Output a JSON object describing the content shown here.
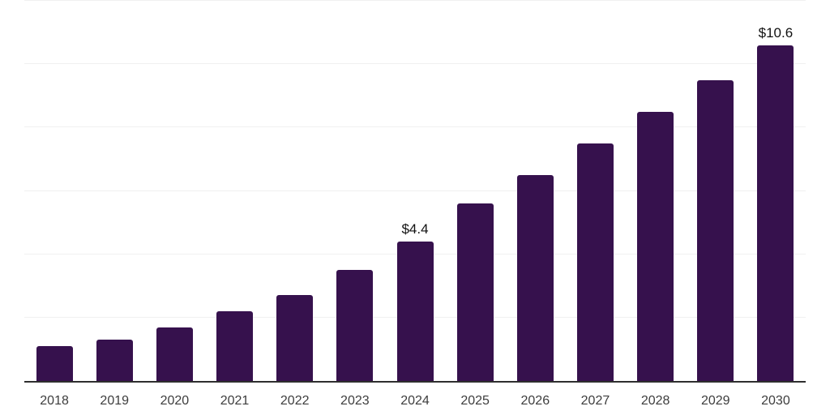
{
  "chart_data": {
    "type": "bar",
    "categories": [
      "2018",
      "2019",
      "2020",
      "2021",
      "2022",
      "2023",
      "2024",
      "2025",
      "2026",
      "2027",
      "2028",
      "2029",
      "2030"
    ],
    "values": [
      1.1,
      1.3,
      1.7,
      2.2,
      2.7,
      3.5,
      4.4,
      5.6,
      6.5,
      7.5,
      8.5,
      9.5,
      10.6
    ],
    "value_labels": [
      {
        "category": "2024",
        "index": 6,
        "text": "$4.4"
      },
      {
        "category": "2030",
        "index": 12,
        "text": "$10.6"
      }
    ],
    "xlabel": "",
    "ylabel": "",
    "ylim": [
      0,
      12
    ],
    "gridline_values": [
      2,
      4,
      6,
      8,
      10,
      12
    ],
    "grid": "horizontal-light",
    "legend_position": "none",
    "colors": {
      "bar": "#36114d",
      "gridline": "#f0f0f0",
      "axis_line": "#2e2e2e",
      "tick_label": "#3d3d3d",
      "value_label": "#111111",
      "background": "#ffffff"
    }
  }
}
